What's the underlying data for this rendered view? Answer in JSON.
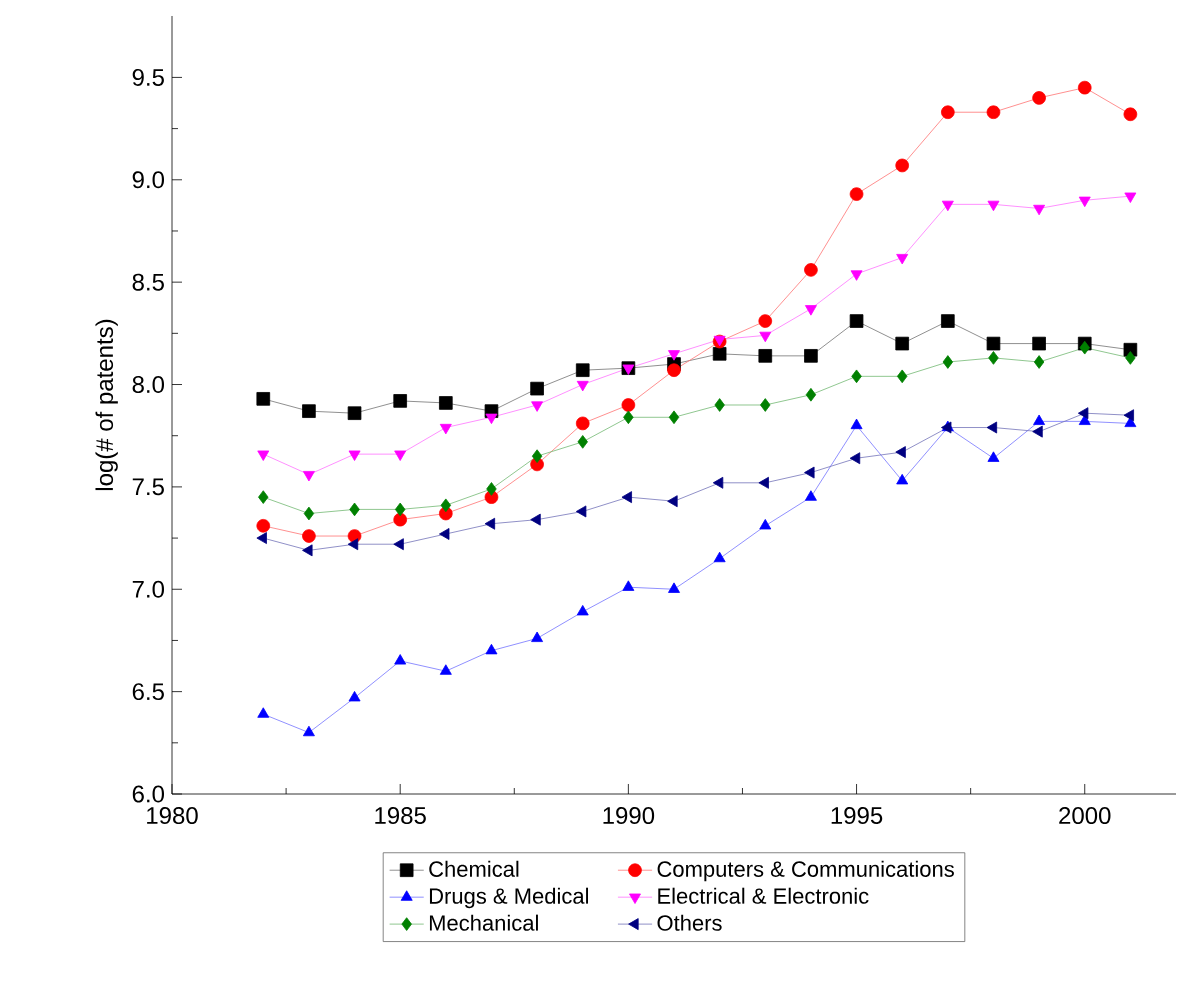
{
  "chart_data": {
    "type": "line",
    "ylabel": "log(# of patents)",
    "x": [
      1982,
      1983,
      1984,
      1985,
      1986,
      1987,
      1988,
      1989,
      1990,
      1991,
      1992,
      1993,
      1994,
      1995,
      1996,
      1997,
      1998,
      1999,
      2000,
      2001
    ],
    "xlim": [
      1980,
      2002
    ],
    "xticks": [
      1980,
      1985,
      1990,
      1995,
      2000
    ],
    "ylim": [
      6.0,
      9.8
    ],
    "yticks": [
      {
        "value": 6.0,
        "label": "6.0"
      },
      {
        "value": 6.5,
        "label": "6.5"
      },
      {
        "value": 7.0,
        "label": "7.0"
      },
      {
        "value": 7.5,
        "label": "7.5"
      },
      {
        "value": 8.0,
        "label": "8.0"
      },
      {
        "value": 8.5,
        "label": "8.5"
      },
      {
        "value": 9.0,
        "label": "9.0"
      },
      {
        "value": 9.5,
        "label": "9.5"
      }
    ],
    "grid": false,
    "legend": "bottom",
    "line_style": "solid",
    "series": [
      {
        "name": "Chemical",
        "color": "#000000",
        "marker": "square",
        "values": [
          7.93,
          7.87,
          7.86,
          7.92,
          7.91,
          7.87,
          7.98,
          8.07,
          8.08,
          8.1,
          8.15,
          8.14,
          8.14,
          8.31,
          8.2,
          8.31,
          8.2,
          8.2,
          8.2,
          8.17
        ]
      },
      {
        "name": "Computers & Communications",
        "color": "#ff0000",
        "marker": "circle",
        "values": [
          7.31,
          7.26,
          7.26,
          7.34,
          7.37,
          7.45,
          7.61,
          7.81,
          7.9,
          8.07,
          8.21,
          8.31,
          8.56,
          8.93,
          9.07,
          9.33,
          9.33,
          9.4,
          9.45,
          9.32
        ]
      },
      {
        "name": "Drugs & Medical",
        "color": "#0000ff",
        "marker": "triangle",
        "values": [
          6.39,
          6.3,
          6.47,
          6.65,
          6.6,
          6.7,
          6.76,
          6.89,
          7.01,
          7.0,
          7.15,
          7.31,
          7.45,
          7.8,
          7.53,
          7.79,
          7.64,
          7.82,
          7.82,
          7.81
        ]
      },
      {
        "name": "Electrical & Electronic",
        "color": "#ff00ff",
        "marker": "triangle-down",
        "values": [
          7.66,
          7.56,
          7.66,
          7.66,
          7.79,
          7.84,
          7.9,
          8.0,
          8.08,
          8.15,
          8.22,
          8.24,
          8.37,
          8.54,
          8.62,
          8.88,
          8.88,
          8.86,
          8.9,
          8.92
        ]
      },
      {
        "name": "Mechanical",
        "color": "#008000",
        "marker": "diamond",
        "values": [
          7.45,
          7.37,
          7.39,
          7.39,
          7.41,
          7.49,
          7.65,
          7.72,
          7.84,
          7.84,
          7.9,
          7.9,
          7.95,
          8.04,
          8.04,
          8.11,
          8.13,
          8.11,
          8.18,
          8.13
        ]
      },
      {
        "name": "Others",
        "color": "#000080",
        "marker": "triangle-left",
        "values": [
          7.25,
          7.19,
          7.22,
          7.22,
          7.27,
          7.32,
          7.34,
          7.38,
          7.45,
          7.43,
          7.52,
          7.52,
          7.57,
          7.64,
          7.67,
          7.79,
          7.79,
          7.77,
          7.86,
          7.85
        ]
      }
    ]
  }
}
